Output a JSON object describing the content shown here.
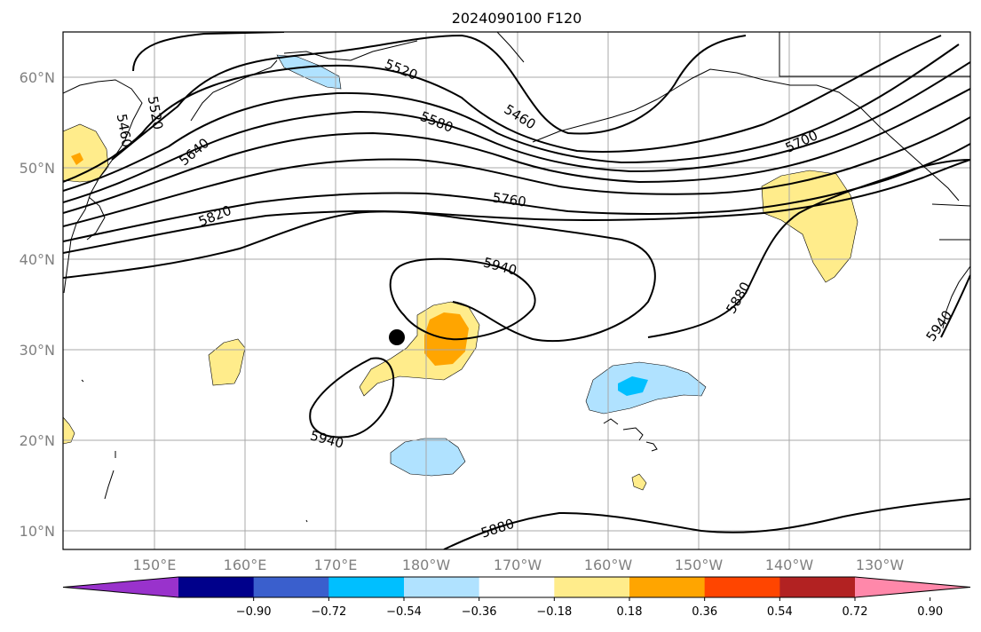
{
  "title": "2024090100 F120",
  "lat_labels": [
    "10°N",
    "20°N",
    "30°N",
    "40°N",
    "50°N",
    "60°N"
  ],
  "lon_labels": [
    "150°E",
    "160°E",
    "170°E",
    "180°W",
    "170°W",
    "160°W",
    "150°W",
    "140°W",
    "130°W"
  ],
  "colorbar": {
    "labels": [
      "−0.90",
      "−0.72",
      "−0.54",
      "−0.36",
      "−0.18",
      "0.18",
      "0.36",
      "0.54",
      "0.72",
      "0.90"
    ],
    "colors": [
      "#9932cc",
      "#00008b",
      "#3a5fcd",
      "#00bfff",
      "#b0e2ff",
      "#ffffff",
      "#ffec8b",
      "#ffa500",
      "#ff4500",
      "#b22222",
      "#ff88aa"
    ]
  },
  "contour_labels": [
    "5520",
    "5460",
    "5520",
    "5460",
    "5580",
    "5640",
    "5820",
    "5760",
    "5700",
    "5940",
    "5880",
    "5940",
    "5940",
    "5880"
  ],
  "colors": {
    "positive_light": "#ffec8b",
    "positive_mid": "#ffa500",
    "negative_light": "#b0e2ff",
    "negative_mid": "#00bfff"
  }
}
